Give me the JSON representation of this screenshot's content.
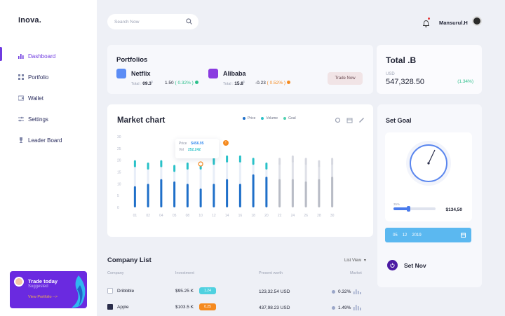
{
  "brand": "Inova.",
  "sidebar": {
    "items": [
      {
        "label": "Dashboard",
        "icon": "bar-chart-icon"
      },
      {
        "label": "Portfolio",
        "icon": "grid-icon"
      },
      {
        "label": "Wallet",
        "icon": "wallet-icon"
      },
      {
        "label": "Settings",
        "icon": "settings-icon"
      },
      {
        "label": "Leader Board",
        "icon": "trophy-icon"
      }
    ],
    "trade_card": {
      "title": "Trade today",
      "subtitle": "Suggested",
      "link": "View Portfolio -->"
    }
  },
  "header": {
    "search_placeholder": "Search Now",
    "user_name": "Mansurul.H"
  },
  "portfolios": {
    "title": "Portfolios",
    "stocks": [
      {
        "name": "Netflix",
        "total_label": "Total :",
        "total": "09.3",
        "unit": "k",
        "change": "1.50",
        "pct": "( 0.32% )",
        "color": "#2bbf8a"
      },
      {
        "name": "Alibaba",
        "total_label": "Total :",
        "total": "15.8",
        "unit": "k",
        "change": "-0.23",
        "pct": "( 0.52% )",
        "color": "#f58a1f"
      }
    ],
    "trade_button": "Trade Now"
  },
  "total": {
    "title": "Total .B",
    "currency": "USD",
    "amount": "547,328.50",
    "pct": "(1.34%)"
  },
  "market": {
    "title": "Market chart",
    "legend": [
      {
        "label": "Price",
        "color": "#1f6fc9"
      },
      {
        "label": "Volume",
        "color": "#29c1c8"
      },
      {
        "label": "Goal",
        "color": "#4fd1b0"
      }
    ],
    "tooltip": {
      "price_label": "Price",
      "price": "$456.95",
      "vol_label": "Vol",
      "vol": "252.242"
    }
  },
  "chart_data": {
    "type": "bar",
    "y_ticks": [
      "30",
      "25",
      "20",
      "15",
      "10",
      "5",
      "0"
    ],
    "categories": [
      "01",
      "02",
      "04",
      "05",
      "08",
      "10",
      "12",
      "14",
      "16",
      "18",
      "20",
      "22",
      "24",
      "26",
      "28",
      "30"
    ],
    "series": [
      {
        "name": "Price",
        "values": [
          9,
          10,
          12,
          11,
          10,
          8,
          10,
          12,
          10,
          14,
          13,
          12,
          12,
          11,
          12,
          13
        ]
      },
      {
        "name": "Volume",
        "values": [
          8,
          7,
          8,
          6,
          7,
          7,
          9,
          10,
          10,
          9,
          7,
          9,
          10,
          9,
          8,
          9
        ]
      }
    ],
    "ylim": [
      0,
      30
    ]
  },
  "goal": {
    "title": "Set Goal",
    "slider_pct": "35%",
    "slider_value": 0.35,
    "amount": "$134,50",
    "date": [
      "05",
      "12",
      "2019"
    ],
    "button": "Set Nov"
  },
  "company": {
    "title": "Company List",
    "list_view": "List View",
    "columns": [
      "Company",
      "Investment",
      "Present worth",
      "Market"
    ],
    "rows": [
      {
        "name": "Dribbble",
        "investment": "$95.25 K",
        "tag": "1.24",
        "tag_color": "#4fd1e0",
        "present": "123,32.54 USD",
        "market": "0.32%",
        "dot": "#9aa6c8",
        "checked": false
      },
      {
        "name": "Apple",
        "investment": "$103.5 K",
        "tag": "0.25",
        "tag_color": "#f58a1f",
        "present": "437,98.23 USD",
        "market": "1.49%",
        "dot": "#9aa6c8",
        "checked": true
      }
    ]
  }
}
